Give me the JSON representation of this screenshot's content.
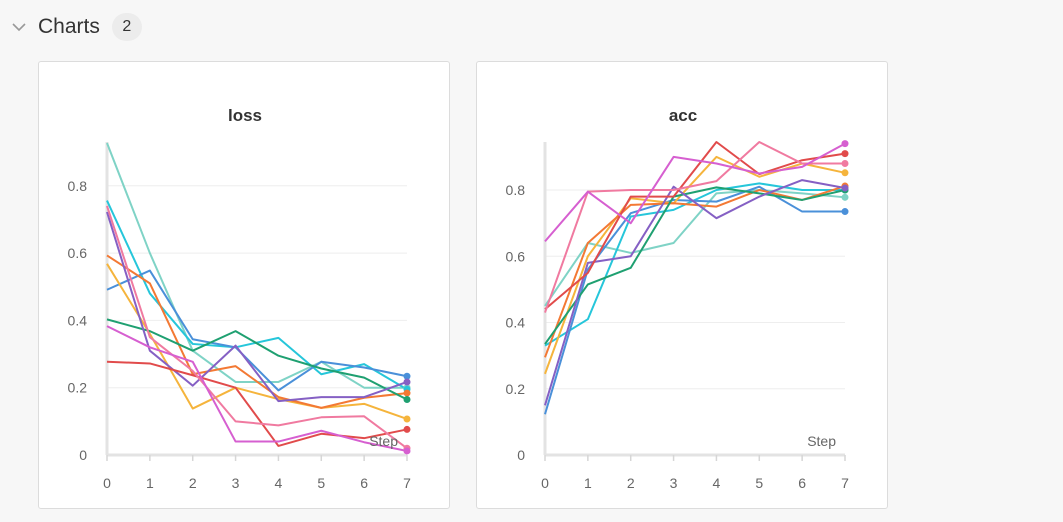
{
  "section": {
    "title": "Charts",
    "count": "2"
  },
  "chart_data": [
    {
      "type": "line",
      "title": "loss",
      "xlabel": "Step",
      "ylabel": "",
      "x": [
        0,
        1,
        2,
        3,
        4,
        5,
        6,
        7
      ],
      "xlim": [
        0,
        7
      ],
      "ylim": [
        0,
        0.93
      ],
      "xticks": [
        0,
        1,
        2,
        3,
        4,
        5,
        6,
        7
      ],
      "yticks": [
        0,
        0.2,
        0.4,
        0.6,
        0.8
      ],
      "ytick_labels": [
        "0",
        "0.2",
        "0.4",
        "0.6",
        "0.8"
      ],
      "grid": true,
      "series": [
        {
          "color": "#7fd3c6",
          "values": [
            0.927,
            0.6,
            0.31,
            0.217,
            0.217,
            0.277,
            0.2,
            0.2
          ]
        },
        {
          "color": "#26c6da",
          "values": [
            0.756,
            0.48,
            0.33,
            0.32,
            0.348,
            0.24,
            0.27,
            0.195
          ]
        },
        {
          "color": "#4a90d9",
          "values": [
            0.491,
            0.548,
            0.344,
            0.32,
            0.192,
            0.277,
            0.26,
            0.234
          ]
        },
        {
          "color": "#f5b43c",
          "values": [
            0.568,
            0.36,
            0.138,
            0.2,
            0.166,
            0.14,
            0.152,
            0.107
          ]
        },
        {
          "color": "#f37934",
          "values": [
            0.593,
            0.51,
            0.24,
            0.264,
            0.172,
            0.14,
            0.17,
            0.184
          ]
        },
        {
          "color": "#1fa071",
          "values": [
            0.403,
            0.368,
            0.31,
            0.368,
            0.295,
            0.257,
            0.23,
            0.165
          ]
        },
        {
          "color": "#8560c4",
          "values": [
            0.722,
            0.31,
            0.206,
            0.325,
            0.16,
            0.172,
            0.172,
            0.217
          ]
        },
        {
          "color": "#e14b4b",
          "values": [
            0.277,
            0.272,
            0.237,
            0.2,
            0.027,
            0.063,
            0.05,
            0.076
          ]
        },
        {
          "color": "#f07aa0",
          "values": [
            0.74,
            0.35,
            0.25,
            0.1,
            0.088,
            0.112,
            0.115,
            0.02
          ]
        },
        {
          "color": "#d65fd0",
          "values": [
            0.383,
            0.32,
            0.277,
            0.04,
            0.04,
            0.072,
            0.038,
            0.012
          ]
        }
      ]
    },
    {
      "type": "line",
      "title": "acc",
      "xlabel": "Step",
      "ylabel": "",
      "x": [
        0,
        1,
        2,
        3,
        4,
        5,
        6,
        7
      ],
      "xlim": [
        0,
        7
      ],
      "ylim": [
        0,
        0.945
      ],
      "xticks": [
        0,
        1,
        2,
        3,
        4,
        5,
        6,
        7
      ],
      "yticks": [
        0,
        0.2,
        0.4,
        0.6,
        0.8
      ],
      "ytick_labels": [
        "0",
        "0.2",
        "0.4",
        "0.6",
        "0.8"
      ],
      "grid": true,
      "series": [
        {
          "color": "#7fd3c6",
          "values": [
            0.45,
            0.64,
            0.61,
            0.64,
            0.79,
            0.8,
            0.79,
            0.778
          ]
        },
        {
          "color": "#26c6da",
          "values": [
            0.33,
            0.41,
            0.72,
            0.74,
            0.8,
            0.82,
            0.8,
            0.8
          ]
        },
        {
          "color": "#4a90d9",
          "values": [
            0.123,
            0.56,
            0.73,
            0.77,
            0.765,
            0.81,
            0.735,
            0.735
          ]
        },
        {
          "color": "#f5b43c",
          "values": [
            0.245,
            0.6,
            0.775,
            0.76,
            0.9,
            0.84,
            0.88,
            0.852
          ]
        },
        {
          "color": "#f37934",
          "values": [
            0.295,
            0.64,
            0.755,
            0.76,
            0.75,
            0.8,
            0.77,
            0.812
          ]
        },
        {
          "color": "#1fa071",
          "values": [
            0.335,
            0.515,
            0.565,
            0.78,
            0.808,
            0.79,
            0.77,
            0.8
          ]
        },
        {
          "color": "#8560c4",
          "values": [
            0.15,
            0.58,
            0.6,
            0.81,
            0.715,
            0.78,
            0.83,
            0.806
          ]
        },
        {
          "color": "#e14b4b",
          "values": [
            0.44,
            0.55,
            0.78,
            0.78,
            0.945,
            0.848,
            0.89,
            0.91
          ]
        },
        {
          "color": "#f07aa0",
          "values": [
            0.43,
            0.795,
            0.8,
            0.8,
            0.827,
            0.945,
            0.88,
            0.88
          ]
        },
        {
          "color": "#d65fd0",
          "values": [
            0.645,
            0.795,
            0.7,
            0.9,
            0.88,
            0.85,
            0.87,
            0.94
          ]
        }
      ]
    }
  ]
}
